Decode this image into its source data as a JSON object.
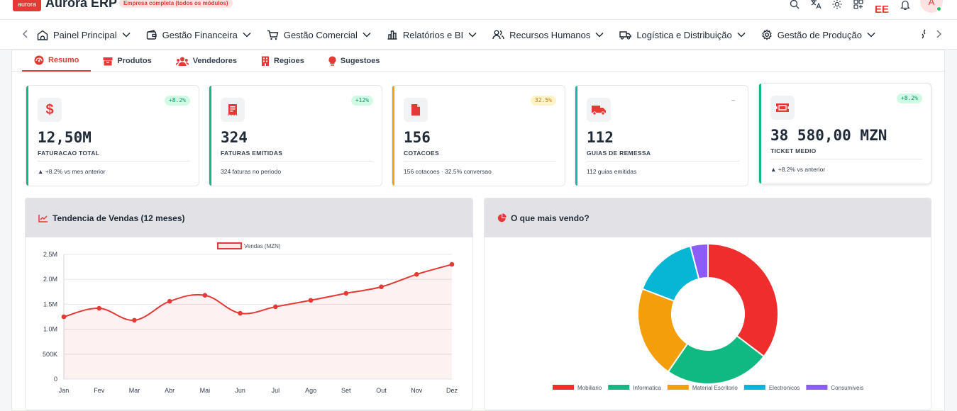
{
  "app": {
    "logo_text": "aurora",
    "title": "Aurora ERP",
    "plan_badge": "Empresa completa (todos os módulos)",
    "ee_text": "EE",
    "avatar_initial": "A",
    "icons": [
      "search-icon",
      "translate-icon",
      "sun-icon",
      "apps-icon",
      "bell-icon"
    ]
  },
  "nav": {
    "items": [
      {
        "label": "Painel Principal",
        "icon": "home-icon"
      },
      {
        "label": "Gestão Financeira",
        "icon": "wallet-icon"
      },
      {
        "label": "Gestão Comercial",
        "icon": "cart-icon"
      },
      {
        "label": "Relatórios e BI",
        "icon": "bar-chart-icon"
      },
      {
        "label": "Recursos Humanos",
        "icon": "users-icon"
      },
      {
        "label": "Logística e Distribuição",
        "icon": "truck-icon"
      },
      {
        "label": "Gestão de Produção",
        "icon": "gear-icon"
      }
    ]
  },
  "tabs": [
    {
      "label": "Resumo",
      "icon": "gauge-icon",
      "active": true
    },
    {
      "label": "Produtos",
      "icon": "box-icon",
      "active": false
    },
    {
      "label": "Vendedores",
      "icon": "users-icon",
      "active": false
    },
    {
      "label": "Regioes",
      "icon": "building-icon",
      "active": false
    },
    {
      "label": "Sugestoes",
      "icon": "lightbulb-icon",
      "active": false
    }
  ],
  "kpis": [
    {
      "value": "12,50M",
      "label": "FATURACAO TOTAL",
      "badge": "+8.2%",
      "sub": "▲ +8.2% vs mes anterior",
      "icon": "dollar-icon",
      "accent": "#10b981",
      "badge_bg": "#d1fae5",
      "badge_fg": "#059669"
    },
    {
      "value": "324",
      "label": "FATURAS EMITIDAS",
      "badge": "+12%",
      "sub": "324 faturas no periodo",
      "icon": "invoice-icon",
      "accent": "#10b981",
      "badge_bg": "#d1fae5",
      "badge_fg": "#059669"
    },
    {
      "value": "156",
      "label": "COTACOES",
      "badge": "32.5%",
      "sub": "156 cotacoes · 32.5% conversao",
      "icon": "file-icon",
      "accent": "#f59e0b",
      "badge_bg": "#fef3c7",
      "badge_fg": "#d97706"
    },
    {
      "value": "112",
      "label": "GUIAS DE REMESSA",
      "badge": "–",
      "sub": "112 guias emitidas",
      "icon": "truck-icon",
      "accent": "#14b8a6",
      "badge_bg": "transparent",
      "badge_fg": "#6b7280"
    },
    {
      "value": "38 580,00 MZN",
      "label": "TICKET MEDIO",
      "badge": "+8.2%",
      "sub": "▲ +8.2% vs anterior",
      "icon": "ticket-icon",
      "accent": "#10b981",
      "badge_bg": "#d1fae5",
      "badge_fg": "#059669"
    }
  ],
  "sales_card": {
    "title": "Tendencia de Vendas (12 meses)",
    "icon": "line-chart-icon"
  },
  "mix_card": {
    "title": "O que mais vendo?",
    "icon": "pie-chart-icon"
  },
  "chart_data": [
    {
      "type": "line",
      "title": "Tendencia de Vendas (12 meses)",
      "x": [
        "Jan",
        "Fev",
        "Mar",
        "Abr",
        "Mai",
        "Jun",
        "Jul",
        "Ago",
        "Set",
        "Out",
        "Nov",
        "Dez"
      ],
      "series": [
        {
          "name": "Vendas (MZN)",
          "values": [
            1250000,
            1420000,
            1180000,
            1560000,
            1680000,
            1320000,
            1450000,
            1580000,
            1720000,
            1850000,
            2100000,
            2300000
          ],
          "color": "#e53935"
        }
      ],
      "yticks": [
        "0",
        "500K",
        "1.0M",
        "1.5M",
        "2.0M",
        "2.5M"
      ],
      "ylim": [
        0,
        2500000
      ],
      "grid": true,
      "legend": "top-center",
      "fill": true
    },
    {
      "type": "pie",
      "title": "O que mais vendo?",
      "donut": true,
      "labels": [
        "Mobiliario",
        "Informatica",
        "Material Escritorio",
        "Electronicos",
        "Consumiveis"
      ],
      "values": [
        35,
        24,
        21,
        15,
        4
      ],
      "colors": [
        "#ef2d2d",
        "#10b981",
        "#f59e0b",
        "#06b6d4",
        "#8b5cf6"
      ],
      "legend": "bottom"
    }
  ]
}
